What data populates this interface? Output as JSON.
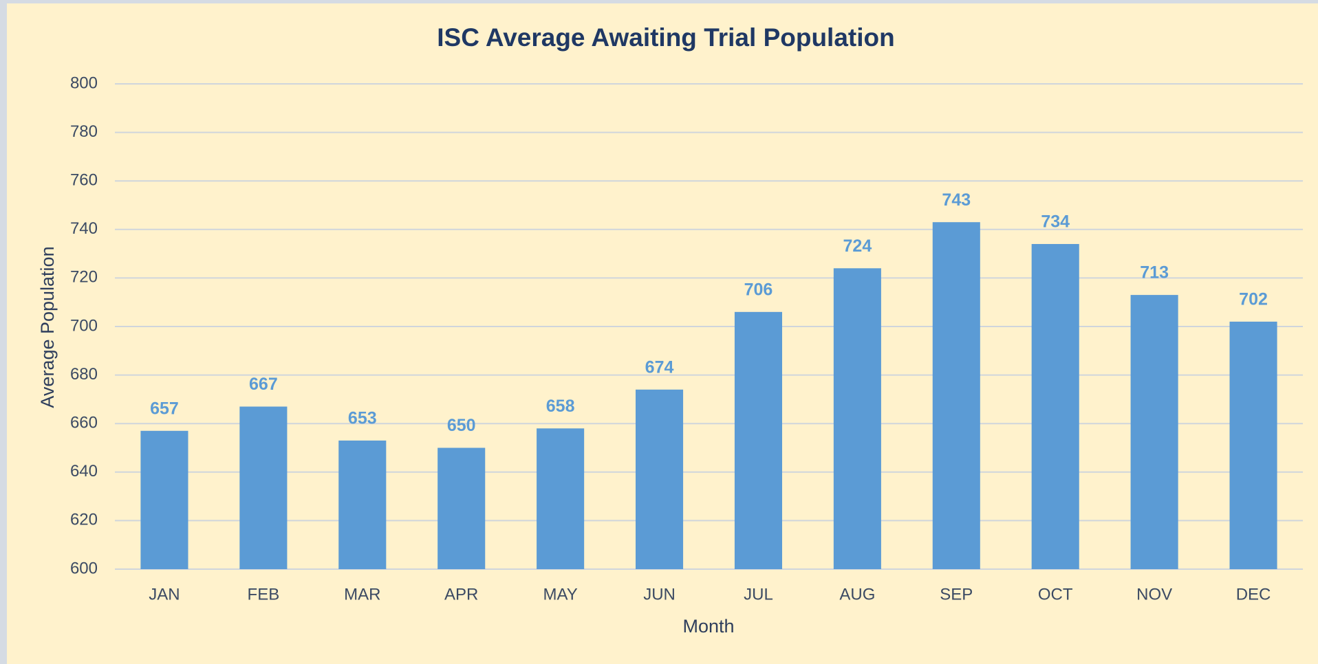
{
  "chart_data": {
    "type": "bar",
    "title": "ISC Average Awaiting Trial Population",
    "categories": [
      "JAN",
      "FEB",
      "MAR",
      "APR",
      "MAY",
      "JUN",
      "JUL",
      "AUG",
      "SEP",
      "OCT",
      "NOV",
      "DEC"
    ],
    "values": [
      657,
      667,
      653,
      650,
      658,
      674,
      706,
      724,
      743,
      734,
      713,
      702
    ],
    "color": "#5b9bd5",
    "x_label": "Month",
    "y_label": "Average Population",
    "ylim": [
      600,
      800
    ],
    "yticks": [
      600,
      620,
      640,
      660,
      680,
      700,
      720,
      740,
      760,
      780,
      800
    ],
    "grid": true
  }
}
